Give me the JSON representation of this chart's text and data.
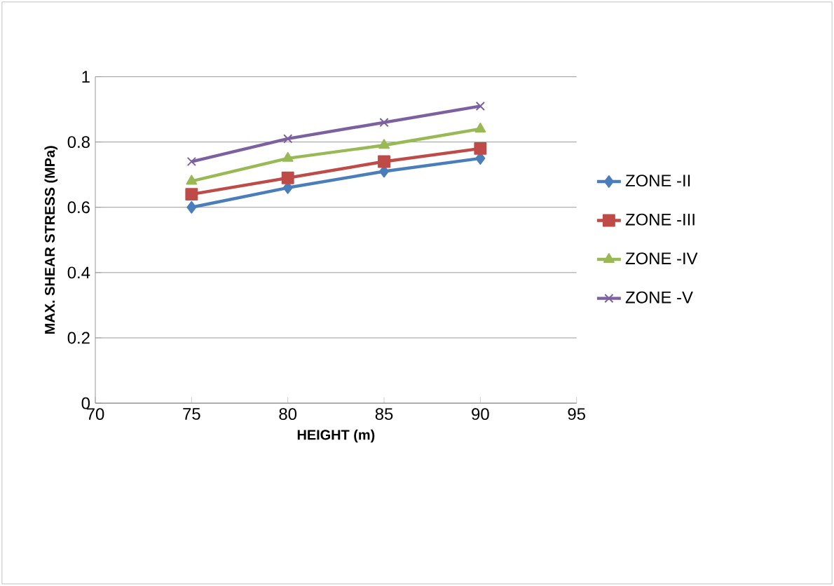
{
  "chart_data": {
    "type": "line",
    "xlabel": "HEIGHT (m)",
    "ylabel": "MAX. SHEAR STRESS (MPa)",
    "x": [
      75,
      80,
      85,
      90
    ],
    "series": [
      {
        "name": "ZONE -II",
        "color": "#4a7ebb",
        "marker": "diamond",
        "values": [
          0.6,
          0.66,
          0.71,
          0.75
        ]
      },
      {
        "name": "ZONE -III",
        "color": "#be4b48",
        "marker": "square",
        "values": [
          0.64,
          0.69,
          0.74,
          0.78
        ]
      },
      {
        "name": "ZONE -IV",
        "color": "#98b954",
        "marker": "triangle",
        "values": [
          0.68,
          0.75,
          0.79,
          0.84
        ]
      },
      {
        "name": "ZONE -V",
        "color": "#7d60a0",
        "marker": "cross",
        "values": [
          0.74,
          0.81,
          0.86,
          0.91
        ]
      }
    ],
    "xlim": [
      70,
      95
    ],
    "xticks": [
      70,
      75,
      80,
      85,
      90,
      95
    ],
    "ylim": [
      0,
      1
    ],
    "yticks": [
      0,
      0.2,
      0.4,
      0.6,
      0.8,
      1
    ],
    "grid": "y",
    "legend": "right"
  }
}
